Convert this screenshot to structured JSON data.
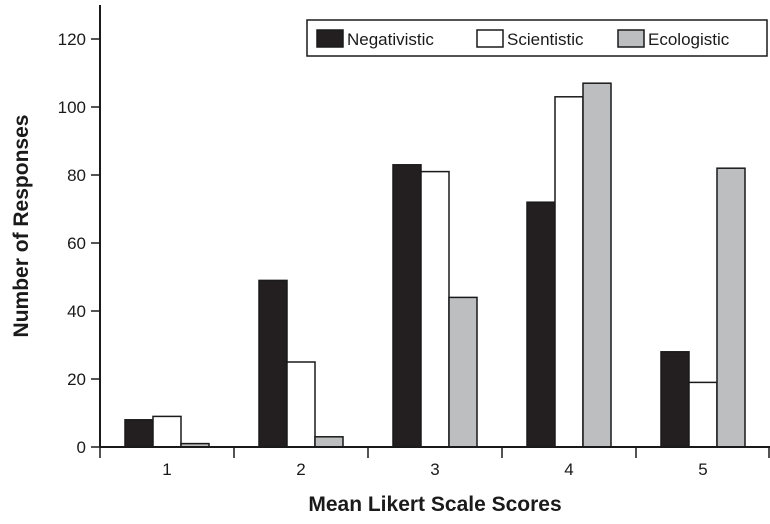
{
  "chart_data": {
    "type": "bar",
    "title": "",
    "xlabel": "Mean Likert Scale Scores",
    "ylabel": "Number of Responses",
    "categories": [
      "1",
      "2",
      "3",
      "4",
      "5"
    ],
    "ylim": [
      0,
      130
    ],
    "yticks": [
      "0",
      "20",
      "40",
      "60",
      "80",
      "100",
      "120"
    ],
    "grid": false,
    "legend_position": "top-right",
    "series": [
      {
        "name": "Negativistic",
        "color": "#231f20",
        "values": [
          8,
          49,
          83,
          72,
          28
        ]
      },
      {
        "name": "Scientistic",
        "color": "#ffffff",
        "values": [
          9,
          25,
          81,
          103,
          19
        ]
      },
      {
        "name": "Ecologistic",
        "color": "#bcbec0",
        "values": [
          1,
          3,
          44,
          107,
          82
        ]
      }
    ]
  }
}
